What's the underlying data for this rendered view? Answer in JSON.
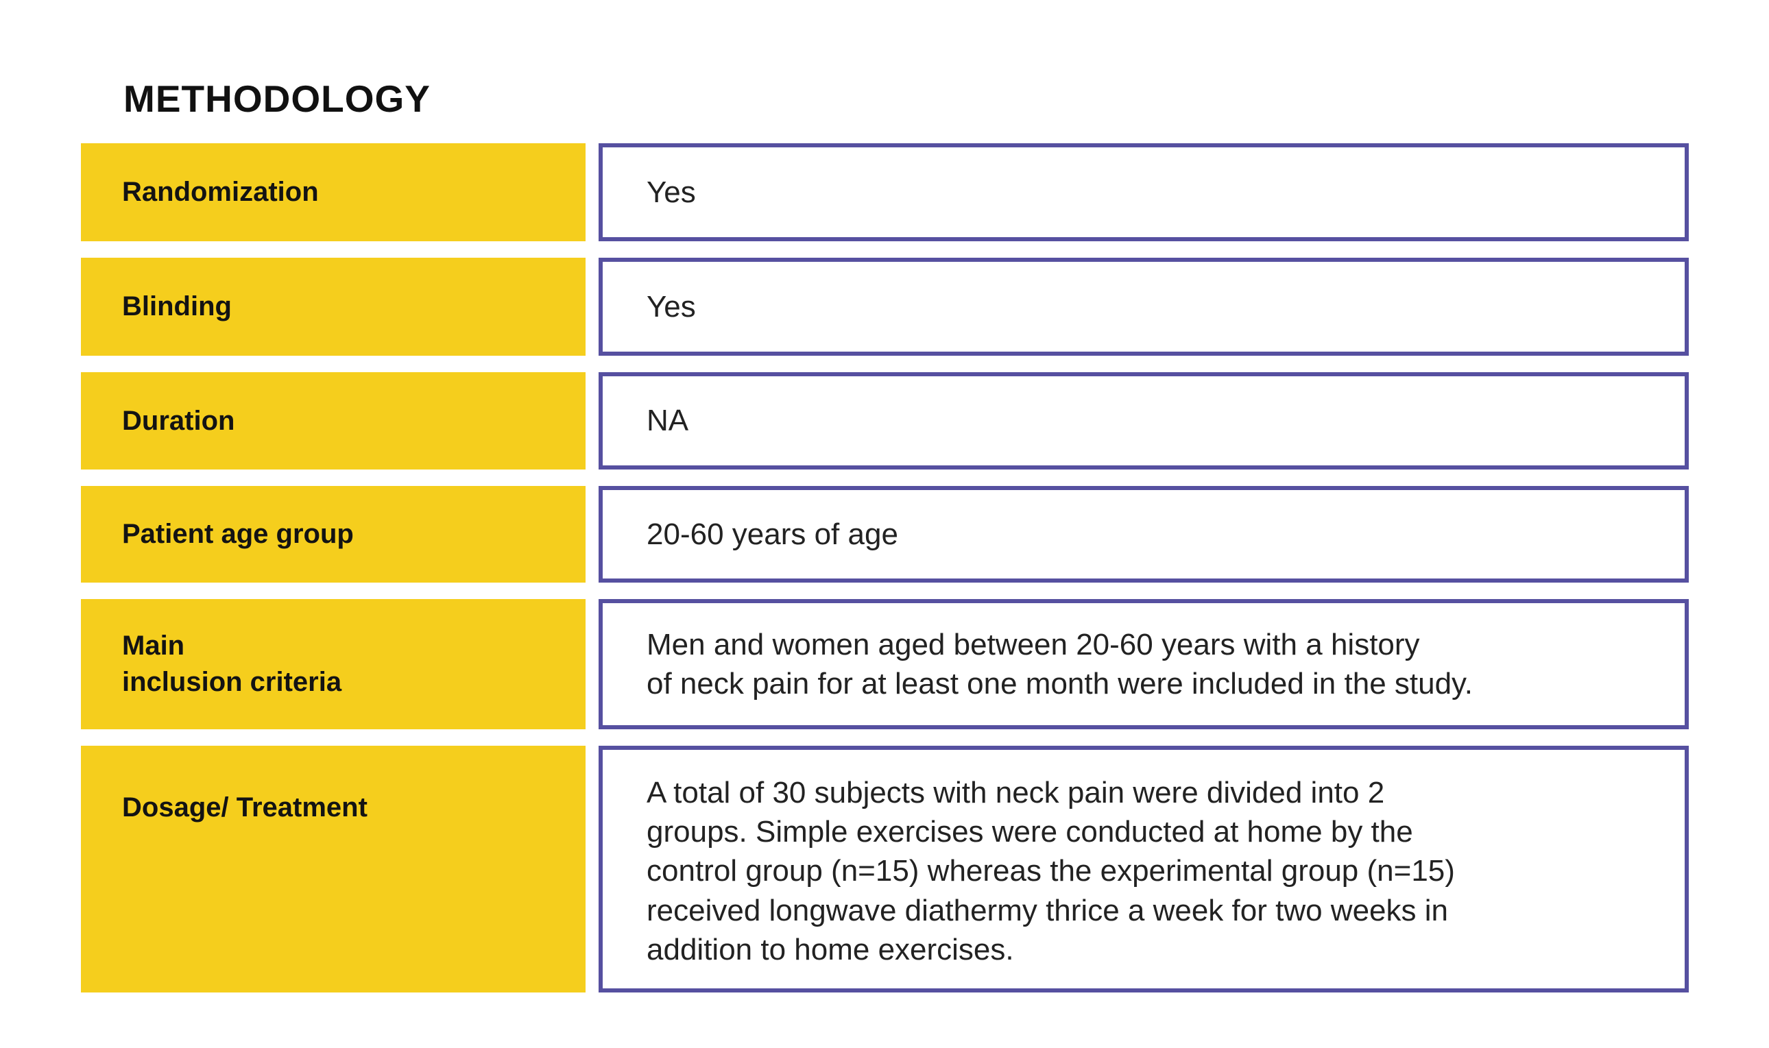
{
  "page": {
    "heading": "METHODOLOGY"
  },
  "colors": {
    "label_box_bg": "#F5CE1D",
    "value_box_border": "#5650A0",
    "heading_text": "#111111",
    "label_text": "#131313",
    "value_text": "#222222",
    "page_bg": "#FFFFFF"
  },
  "table": {
    "rows": [
      {
        "label": "Randomization",
        "value": "Yes"
      },
      {
        "label": "Blinding",
        "value": "Yes"
      },
      {
        "label": "Duration",
        "value": "NA"
      },
      {
        "label": "Patient age group",
        "value": "20-60 years of age"
      },
      {
        "label": "Main\ninclusion criteria",
        "value": "Men and women aged between 20-60 years with a history\nof neck pain for at least one month were included in the study."
      },
      {
        "label": "Dosage/ Treatment",
        "value": "A total of 30 subjects with neck pain were divided into 2\ngroups. Simple exercises were conducted at home by the\ncontrol group (n=15) whereas the experimental group (n=15)\nreceived longwave diathermy thrice a week for two weeks in\naddition to home exercises."
      }
    ]
  }
}
